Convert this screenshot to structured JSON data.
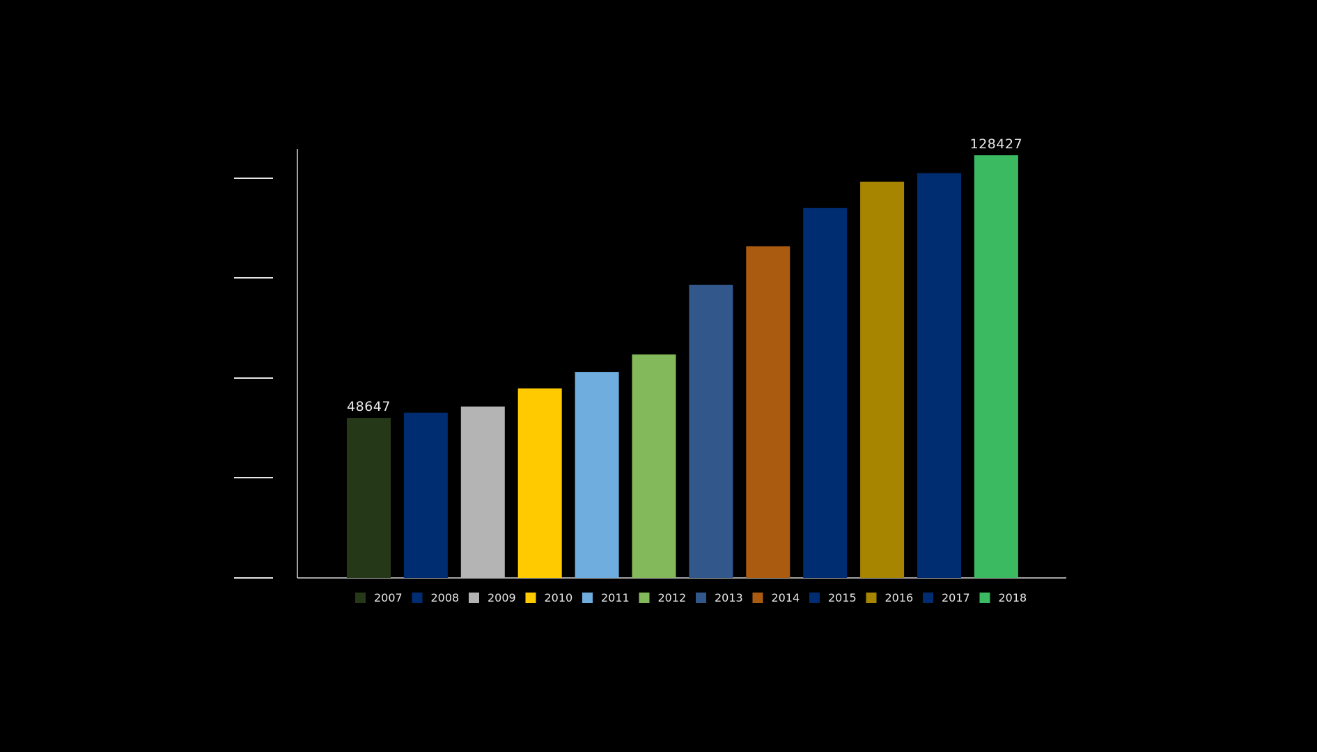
{
  "chart_data": {
    "type": "bar",
    "title": "",
    "xlabel": "",
    "ylabel": "",
    "categories": [
      "2007",
      "2008",
      "2009",
      "2010",
      "2011",
      "2012",
      "2013",
      "2014",
      "2015",
      "2016",
      "2017",
      "2018"
    ],
    "values": [
      48647,
      50200,
      52100,
      57600,
      62600,
      67900,
      89100,
      100800,
      112400,
      120400,
      123000,
      128427
    ],
    "colors": [
      "#253818",
      "#002c71",
      "#b4b4b4",
      "#ffcb00",
      "#6eaddd",
      "#84b95b",
      "#32578b",
      "#ab5b10",
      "#002c71",
      "#a88500",
      "#002c71",
      "#3cba62"
    ],
    "data_labels": [
      {
        "index": 0,
        "text": "48647"
      },
      {
        "index": 11,
        "text": "128427"
      }
    ],
    "ylim": [
      0,
      130000
    ],
    "y_tick_values": [
      0,
      30500,
      61000,
      91500,
      122000
    ],
    "y_tick_labels_shown": false,
    "legend": {
      "placement": "bottom",
      "entries": [
        "2007",
        "2008",
        "2009",
        "2010",
        "2011",
        "2012",
        "2013",
        "2014",
        "2015",
        "2016",
        "2017",
        "2018"
      ]
    },
    "grid": false
  },
  "theme": {
    "background": "#000000",
    "axis_color": "#d9d9d9",
    "text_color": "#e8e8e8"
  }
}
